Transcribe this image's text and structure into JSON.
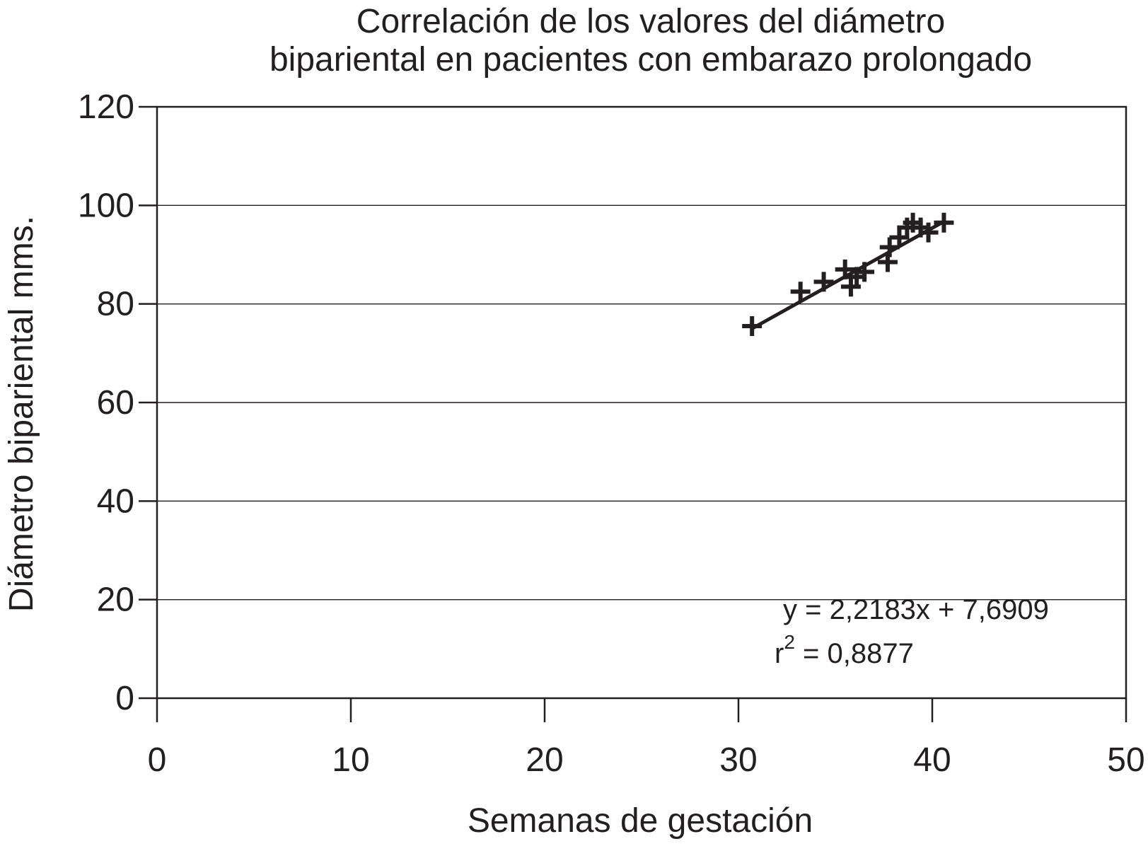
{
  "chart_data": {
    "type": "scatter",
    "title_lines": [
      "Correlación de los valores del diámetro",
      "bipariental en pacientes con embarazo prolongado"
    ],
    "xlabel": "Semanas de gestación",
    "ylabel": "Diámetro bipariental  mms.",
    "xlim": [
      0,
      50
    ],
    "ylim": [
      0,
      120
    ],
    "x_ticks": [
      "0",
      "10",
      "20",
      "30",
      "40",
      "50"
    ],
    "y_ticks": [
      "0",
      "20",
      "40",
      "60",
      "80",
      "100",
      "120"
    ],
    "grid": "horizontal",
    "marker": "plus",
    "color": "#231f20",
    "points": [
      {
        "x": 30.7,
        "y": 75.5
      },
      {
        "x": 33.2,
        "y": 82.5
      },
      {
        "x": 34.4,
        "y": 84.5
      },
      {
        "x": 35.5,
        "y": 87.0
      },
      {
        "x": 35.8,
        "y": 83.5
      },
      {
        "x": 36.1,
        "y": 85.5
      },
      {
        "x": 36.5,
        "y": 86.5
      },
      {
        "x": 37.7,
        "y": 88.5
      },
      {
        "x": 37.8,
        "y": 91.5
      },
      {
        "x": 38.3,
        "y": 93.5
      },
      {
        "x": 38.7,
        "y": 95.5
      },
      {
        "x": 39.0,
        "y": 96.5
      },
      {
        "x": 39.4,
        "y": 95.5
      },
      {
        "x": 39.8,
        "y": 94.5
      },
      {
        "x": 40.6,
        "y": 96.5
      }
    ],
    "trendline": {
      "type": "linear",
      "x_range": [
        30.7,
        40.5
      ],
      "y_range": [
        75.0,
        96.5
      ],
      "equation": "y = 2,2183x + 7,6909",
      "r2_label": "r",
      "r2_exponent": "2",
      "r2_value": " = 0,8877"
    }
  }
}
